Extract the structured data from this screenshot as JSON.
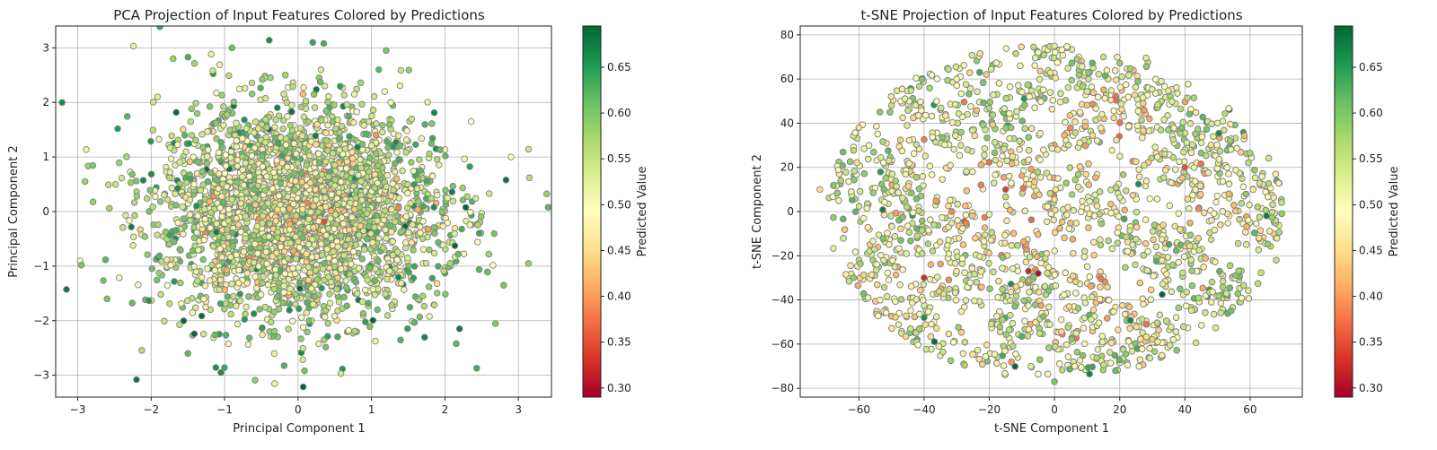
{
  "figure": {
    "colormap": "RdYlGn",
    "point_edge_color": "#808080"
  },
  "chart_data": [
    {
      "type": "scatter",
      "title": "PCA Projection of Input Features Colored by Predictions",
      "xlabel": "Principal Component 1",
      "ylabel": "Principal Component 2",
      "xlim": [
        -3.3,
        3.45
      ],
      "ylim": [
        -3.4,
        3.4
      ],
      "xticks": [
        -3,
        -2,
        -1,
        0,
        1,
        2,
        3
      ],
      "yticks": [
        -3,
        -2,
        -1,
        0,
        1,
        2,
        3
      ],
      "grid": true,
      "colorbar": {
        "label": "Predicted Value",
        "range": [
          0.29,
          0.695
        ],
        "ticks": [
          0.3,
          0.35,
          0.4,
          0.45,
          0.5,
          0.55,
          0.6,
          0.65
        ],
        "tick_labels": [
          "0.30",
          "0.35",
          "0.40",
          "0.45",
          "0.50",
          "0.55",
          "0.60",
          "0.65"
        ]
      },
      "points_sample": [
        [
          -2.2,
          -3.08,
          0.68
        ],
        [
          0.2,
          3.1,
          0.64
        ],
        [
          0.35,
          3.08,
          0.63
        ],
        [
          -0.9,
          3.0,
          0.61
        ],
        [
          1.2,
          2.95,
          0.6
        ],
        [
          3.15,
          0.62,
          0.56
        ],
        [
          -2.95,
          -0.98,
          0.6
        ],
        [
          -2.9,
          0.55,
          0.58
        ],
        [
          -1.05,
          -2.95,
          0.66
        ],
        [
          -1.5,
          -2.6,
          0.62
        ],
        [
          1.85,
          0.08,
          0.66
        ],
        [
          2.9,
          1.0,
          0.5
        ],
        [
          2.8,
          -1.35,
          0.6
        ],
        [
          -1.7,
          2.8,
          0.58
        ],
        [
          1.1,
          2.6,
          0.62
        ],
        [
          -2.6,
          -1.6,
          0.6
        ]
      ]
    },
    {
      "type": "scatter",
      "title": "t-SNE Projection of Input Features Colored by Predictions",
      "xlabel": "t-SNE Component 1",
      "ylabel": "t-SNE Component 2",
      "xlim": [
        -78,
        76
      ],
      "ylim": [
        -84,
        84
      ],
      "xticks": [
        -60,
        -40,
        -20,
        0,
        20,
        40,
        60
      ],
      "yticks": [
        -80,
        -60,
        -40,
        -20,
        0,
        20,
        40,
        60,
        80
      ],
      "grid": true,
      "colorbar": {
        "label": "Predicted Value",
        "range": [
          0.29,
          0.695
        ],
        "ticks": [
          0.3,
          0.35,
          0.4,
          0.45,
          0.5,
          0.55,
          0.6,
          0.65
        ],
        "tick_labels": [
          "0.30",
          "0.35",
          "0.40",
          "0.45",
          "0.50",
          "0.55",
          "0.60",
          "0.65"
        ]
      },
      "points_sample": [
        [
          0,
          75,
          0.52
        ],
        [
          -5,
          72,
          0.5
        ],
        [
          15,
          70,
          0.55
        ],
        [
          65,
          -2,
          0.68
        ],
        [
          -72,
          10,
          0.45
        ],
        [
          68,
          -22,
          0.55
        ],
        [
          0,
          -77,
          0.6
        ],
        [
          -40,
          -48,
          0.66
        ],
        [
          -5,
          -28,
          0.3
        ],
        [
          -8,
          -27,
          0.32
        ],
        [
          -40,
          -30,
          0.33
        ],
        [
          -15,
          10,
          0.34
        ],
        [
          40,
          20,
          0.35
        ],
        [
          -60,
          38,
          0.45
        ],
        [
          50,
          40,
          0.52
        ],
        [
          -30,
          60,
          0.5
        ]
      ]
    }
  ]
}
